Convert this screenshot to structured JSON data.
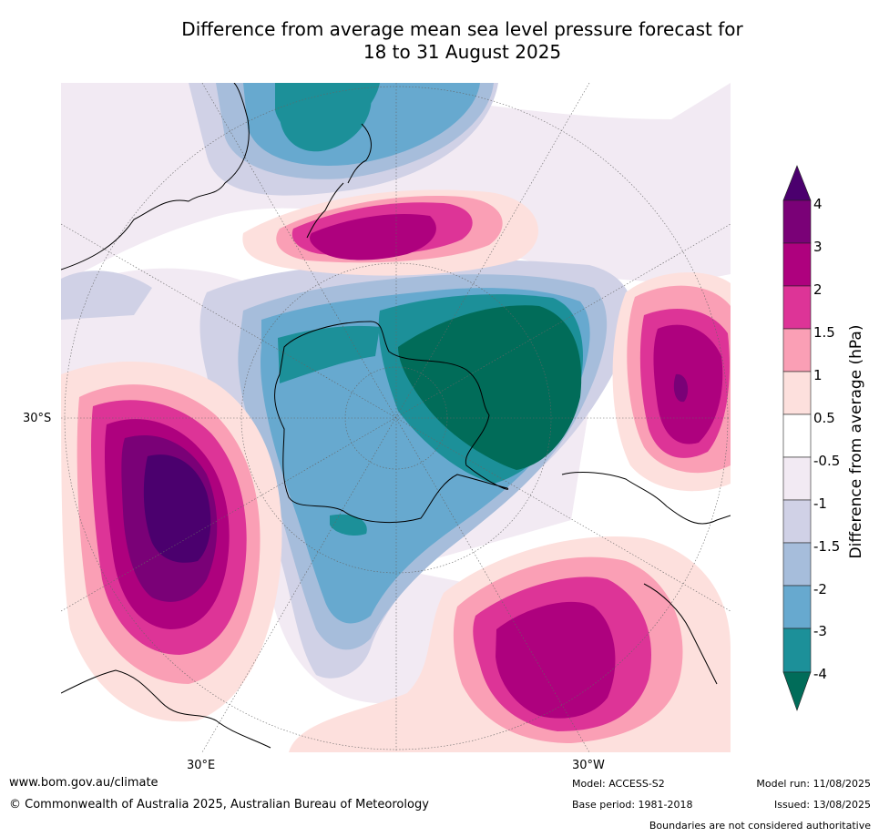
{
  "title": {
    "line1": "Difference from average mean sea level pressure forecast for",
    "line2": "18 to 31 August 2025"
  },
  "axis_labels": {
    "left_lat": "30°S",
    "bottom_left_lon": "30°E",
    "bottom_right_lon": "30°W"
  },
  "colorbar": {
    "title": "Difference from average (hPa)",
    "ticks": [
      "4",
      "3",
      "2",
      "1.5",
      "1",
      "0.5",
      "-0.5",
      "-1",
      "-1.5",
      "-2",
      "-3",
      "-4"
    ],
    "colors": {
      "above_4": "#4b006e",
      "b3_4": "#7a0177",
      "b2_3": "#ae017e",
      "b15_2": "#dd3497",
      "b1_15": "#fa9fb5",
      "b05_1": "#fde0dd",
      "neutral": "#ffffff",
      "bm05_m1": "#f2eaf3",
      "bm1_m15": "#d0d1e6",
      "bm15_m2": "#a6bddb",
      "bm2_m3": "#67a9cf",
      "bm3_m4": "#1c9099",
      "below_m4": "#016c59"
    }
  },
  "footer": {
    "website": "www.bom.gov.au/climate",
    "copyright": "© Commonwealth of Australia 2025, Australian Bureau of Meteorology",
    "model": "Model: ACCESS-S2",
    "base_period": "Base period: 1981-2018",
    "model_run": "Model run: 11/08/2025",
    "issued": "Issued: 13/08/2025",
    "disclaimer": "Boundaries are not considered authoritative"
  }
}
